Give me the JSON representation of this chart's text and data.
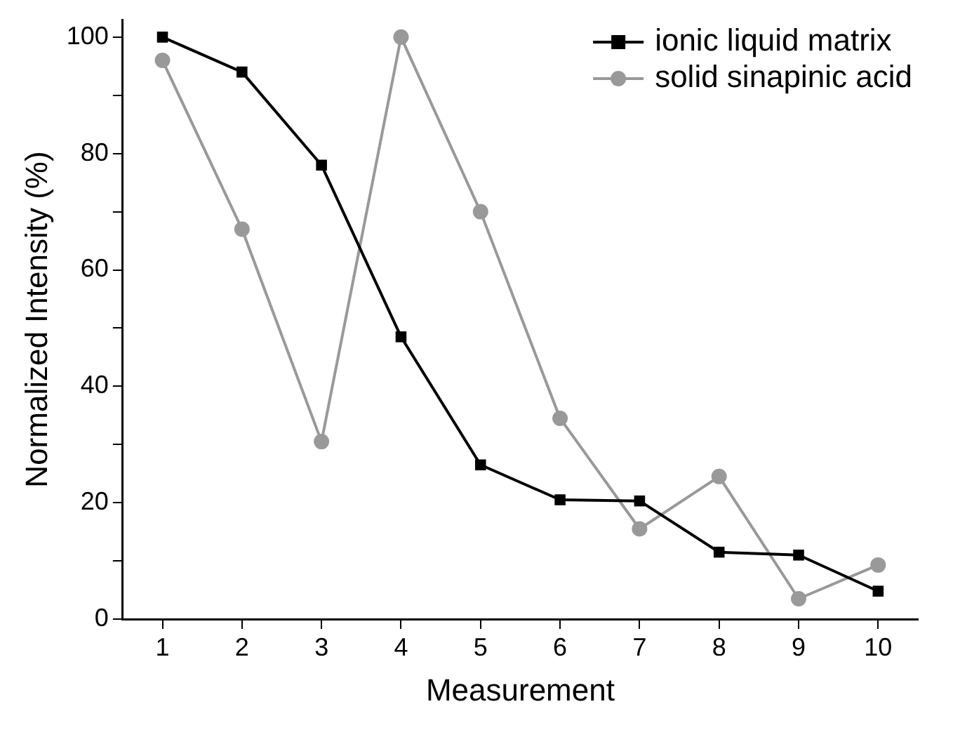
{
  "chart_data": {
    "type": "line",
    "xlabel": "Measurement",
    "ylabel": "Normalized Intensity (%)",
    "x": [
      1,
      2,
      3,
      4,
      5,
      6,
      7,
      8,
      9,
      10
    ],
    "xlim": [
      0.5,
      10.5
    ],
    "xticks": [
      1,
      2,
      3,
      4,
      5,
      6,
      7,
      8,
      9,
      10
    ],
    "ylim": [
      0,
      103
    ],
    "yticks": [
      0,
      {
        "value": 10,
        "label": null
      },
      20,
      {
        "value": 30,
        "label": null
      },
      40,
      {
        "value": 50,
        "label": null
      },
      60,
      {
        "value": 70,
        "label": null
      },
      80,
      {
        "value": 90,
        "label": null
      },
      100
    ],
    "series": [
      {
        "name": "ionic liquid matrix",
        "color": "#000000",
        "marker": "square",
        "values": [
          100,
          94,
          78,
          48.5,
          26.5,
          20.5,
          20.3,
          11.5,
          11,
          4.8
        ]
      },
      {
        "name": "solid sinapinic acid",
        "color": "#999999",
        "marker": "circle",
        "values": [
          96,
          67,
          30.5,
          100,
          70,
          34.5,
          15.5,
          24.5,
          3.5,
          9.3
        ]
      }
    ],
    "grid": false,
    "legend": "top right",
    "line_style": "solid"
  }
}
